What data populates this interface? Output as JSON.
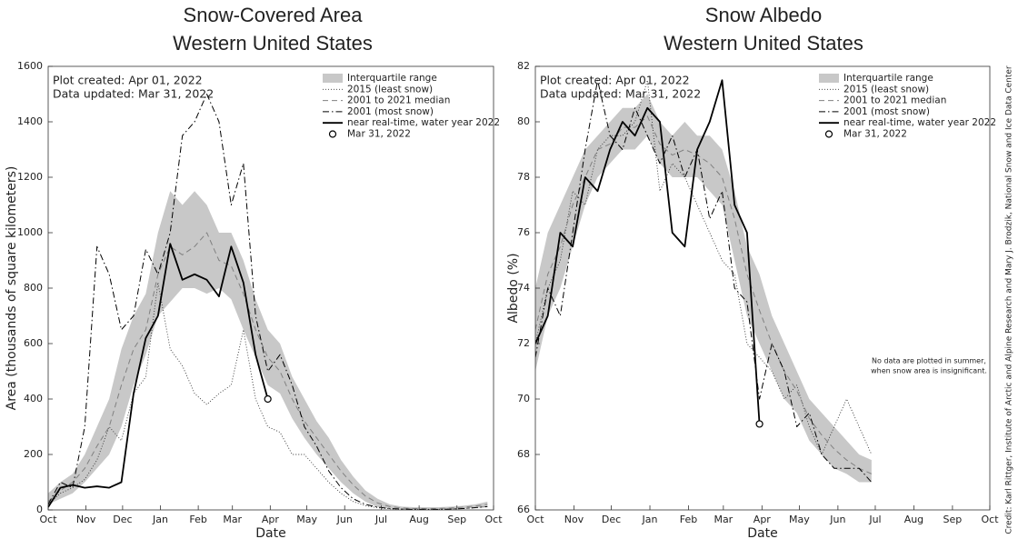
{
  "credit": "Credit: Karl Rittger, Institute of Arctic and Alpine Research and Mary J. Brodzik, National Snow and Ice Data Center",
  "chart_data": [
    {
      "type": "line",
      "title": "Snow-Covered Area",
      "subtitle": "Western United States",
      "annotations": [
        "Plot created: Apr 01, 2022",
        "Data updated: Mar 31, 2022"
      ],
      "xlabel": "Date",
      "ylabel": "Area (thousands of square kilometers)",
      "xlim": [
        0,
        365
      ],
      "xticks": [
        {
          "value": 0,
          "label": "Oct"
        },
        {
          "value": 31,
          "label": "Nov"
        },
        {
          "value": 61,
          "label": "Dec"
        },
        {
          "value": 92,
          "label": "Jan"
        },
        {
          "value": 123,
          "label": "Feb"
        },
        {
          "value": 151,
          "label": "Mar"
        },
        {
          "value": 182,
          "label": "Apr"
        },
        {
          "value": 212,
          "label": "May"
        },
        {
          "value": 243,
          "label": "Jun"
        },
        {
          "value": 273,
          "label": "Jul"
        },
        {
          "value": 304,
          "label": "Aug"
        },
        {
          "value": 335,
          "label": "Sep"
        },
        {
          "value": 365,
          "label": "Oct"
        }
      ],
      "ylim": [
        0,
        1600
      ],
      "yticks": [
        0,
        200,
        400,
        600,
        800,
        1000,
        1200,
        1400,
        1600
      ],
      "legend": "upper right",
      "x": [
        0,
        10,
        20,
        30,
        40,
        50,
        60,
        70,
        80,
        90,
        100,
        110,
        120,
        130,
        140,
        150,
        160,
        170,
        180,
        190,
        200,
        210,
        220,
        230,
        240,
        250,
        260,
        270,
        280,
        290,
        300,
        310,
        320,
        330,
        340,
        350,
        360
      ],
      "series": [
        {
          "name": "Interquartile range",
          "style": "band",
          "color": "#c8c8c8",
          "low": [
            20,
            40,
            60,
            100,
            150,
            200,
            300,
            450,
            560,
            700,
            750,
            800,
            800,
            780,
            800,
            760,
            650,
            550,
            450,
            420,
            330,
            260,
            200,
            150,
            100,
            60,
            30,
            10,
            5,
            3,
            2,
            2,
            2,
            3,
            5,
            8,
            10
          ],
          "high": [
            60,
            100,
            130,
            200,
            300,
            400,
            580,
            700,
            780,
            1000,
            1150,
            1100,
            1150,
            1100,
            1000,
            1000,
            900,
            760,
            650,
            600,
            480,
            400,
            320,
            260,
            180,
            120,
            70,
            40,
            20,
            12,
            10,
            10,
            10,
            12,
            15,
            20,
            30
          ]
        },
        {
          "name": "2015 (least snow)",
          "style": "dotted",
          "color": "#333333",
          "values": [
            20,
            60,
            80,
            110,
            180,
            300,
            250,
            420,
            480,
            820,
            580,
            520,
            420,
            380,
            420,
            450,
            650,
            400,
            300,
            280,
            200,
            200,
            150,
            100,
            60,
            30,
            15,
            8,
            4,
            3,
            2,
            2,
            2,
            3,
            5,
            8,
            12
          ]
        },
        {
          "name": "2001 to 2021 median",
          "style": "dashed",
          "color": "#808080",
          "values": [
            30,
            70,
            100,
            150,
            230,
            300,
            450,
            580,
            650,
            850,
            950,
            920,
            950,
            1000,
            900,
            880,
            780,
            650,
            550,
            500,
            400,
            320,
            260,
            200,
            140,
            90,
            50,
            25,
            12,
            7,
            5,
            5,
            5,
            7,
            10,
            14,
            20
          ]
        },
        {
          "name": "2001 (most snow)",
          "style": "dashdot",
          "color": "#000000",
          "values": [
            20,
            100,
            80,
            300,
            950,
            850,
            650,
            700,
            940,
            850,
            1000,
            1350,
            1400,
            1500,
            1400,
            1100,
            1250,
            700,
            500,
            560,
            450,
            300,
            230,
            140,
            80,
            40,
            20,
            10,
            5,
            3,
            2,
            2,
            2,
            3,
            5,
            8,
            12
          ]
        },
        {
          "name": "near real-time, water year 2022",
          "style": "solid",
          "color": "#000000",
          "values": [
            10,
            80,
            90,
            80,
            85,
            80,
            100,
            420,
            620,
            700,
            960,
            830,
            850,
            830,
            770,
            950,
            820,
            560,
            400,
            null,
            null,
            null,
            null,
            null,
            null,
            null,
            null,
            null,
            null,
            null,
            null,
            null,
            null,
            null,
            null,
            null,
            null
          ]
        },
        {
          "name": "Mar 31, 2022",
          "style": "marker",
          "color": "#000000",
          "x": [
            180
          ],
          "values": [
            400
          ]
        }
      ]
    },
    {
      "type": "line",
      "title": "Snow Albedo",
      "subtitle": "Western United States",
      "annotations": [
        "Plot created: Apr 01, 2022",
        "Data updated: Mar 31, 2022"
      ],
      "note": [
        "No data are plotted in summer,",
        "when snow area is insignificant."
      ],
      "xlabel": "Date",
      "ylabel": "Albedo (%)",
      "xlim": [
        0,
        365
      ],
      "xticks": [
        {
          "value": 0,
          "label": "Oct"
        },
        {
          "value": 31,
          "label": "Nov"
        },
        {
          "value": 61,
          "label": "Dec"
        },
        {
          "value": 92,
          "label": "Jan"
        },
        {
          "value": 123,
          "label": "Feb"
        },
        {
          "value": 151,
          "label": "Mar"
        },
        {
          "value": 182,
          "label": "Apr"
        },
        {
          "value": 212,
          "label": "May"
        },
        {
          "value": 243,
          "label": "Jun"
        },
        {
          "value": 273,
          "label": "Jul"
        },
        {
          "value": 304,
          "label": "Aug"
        },
        {
          "value": 335,
          "label": "Sep"
        },
        {
          "value": 365,
          "label": "Oct"
        }
      ],
      "ylim": [
        66,
        82
      ],
      "yticks": [
        66,
        68,
        70,
        72,
        74,
        76,
        78,
        80,
        82
      ],
      "legend": "upper right",
      "x": [
        0,
        10,
        20,
        30,
        40,
        50,
        60,
        70,
        80,
        90,
        100,
        110,
        120,
        130,
        140,
        150,
        160,
        170,
        180,
        190,
        200,
        210,
        220,
        230,
        240,
        250,
        260,
        270,
        280,
        290,
        300,
        310,
        320,
        330,
        340,
        350,
        360
      ],
      "series": [
        {
          "name": "Interquartile range",
          "style": "band",
          "color": "#c8c8c8",
          "low": [
            71,
            73,
            74,
            75.5,
            77,
            78,
            78.5,
            79,
            79,
            79.5,
            78.5,
            78,
            78,
            78,
            77.5,
            77,
            75,
            73,
            72,
            71,
            70,
            69.5,
            68.5,
            68,
            67.5,
            67.3,
            67,
            67,
            null,
            null,
            null,
            null,
            null,
            null,
            null,
            null,
            null
          ],
          "high": [
            74,
            76,
            77,
            78,
            79,
            79.5,
            80,
            80.5,
            80.5,
            81,
            80,
            79.5,
            80,
            79.5,
            79.5,
            79,
            77.5,
            75.5,
            74.5,
            73,
            72,
            71,
            70,
            69.5,
            69,
            68.5,
            68,
            67.8,
            null,
            null,
            null,
            null,
            null,
            null,
            null,
            null,
            null
          ]
        },
        {
          "name": "2015 (least snow)",
          "style": "dotted",
          "color": "#333333",
          "values": [
            72,
            74,
            75,
            77.5,
            77,
            79,
            79.5,
            79.5,
            80,
            81.5,
            77.5,
            78.5,
            78,
            77,
            76,
            75,
            74.5,
            72,
            71.5,
            71,
            70,
            70.5,
            69,
            68,
            69,
            70,
            69,
            68,
            null,
            null,
            null,
            null,
            null,
            null,
            null,
            null,
            null
          ]
        },
        {
          "name": "2001 to 2021 median",
          "style": "dashed",
          "color": "#808080",
          "values": [
            72.5,
            74.5,
            75.5,
            77,
            78,
            79,
            79.2,
            79.8,
            79.8,
            80.2,
            79.2,
            78.8,
            79,
            78.8,
            78.5,
            78,
            76.5,
            74.5,
            73.2,
            72,
            71,
            70.3,
            69.3,
            68.7,
            68.2,
            67.8,
            67.5,
            67.3,
            null,
            null,
            null,
            null,
            null,
            null,
            null,
            null,
            null
          ]
        },
        {
          "name": "2001 (most snow)",
          "style": "dashdot",
          "color": "#000000",
          "values": [
            71.5,
            74,
            73,
            76,
            79,
            81.5,
            79.5,
            79,
            80.5,
            79.5,
            78.5,
            79.5,
            78,
            79,
            76.5,
            77.5,
            74,
            73.5,
            70,
            72,
            71,
            69,
            69.5,
            68,
            67.5,
            67.5,
            67.5,
            67,
            null,
            null,
            null,
            null,
            null,
            null,
            null,
            null,
            null
          ]
        },
        {
          "name": "near real-time, water year 2022",
          "style": "solid",
          "color": "#000000",
          "values": [
            72,
            73,
            76,
            75.5,
            78,
            77.5,
            79,
            80,
            79.5,
            80.5,
            80,
            76,
            75.5,
            79,
            80,
            81.5,
            77,
            76,
            69.1,
            null,
            null,
            null,
            null,
            null,
            null,
            null,
            null,
            null,
            null,
            null,
            null,
            null,
            null,
            null,
            null,
            null,
            null
          ]
        },
        {
          "name": "Mar 31, 2022",
          "style": "marker",
          "color": "#000000",
          "x": [
            180
          ],
          "values": [
            69.1
          ]
        }
      ]
    }
  ]
}
